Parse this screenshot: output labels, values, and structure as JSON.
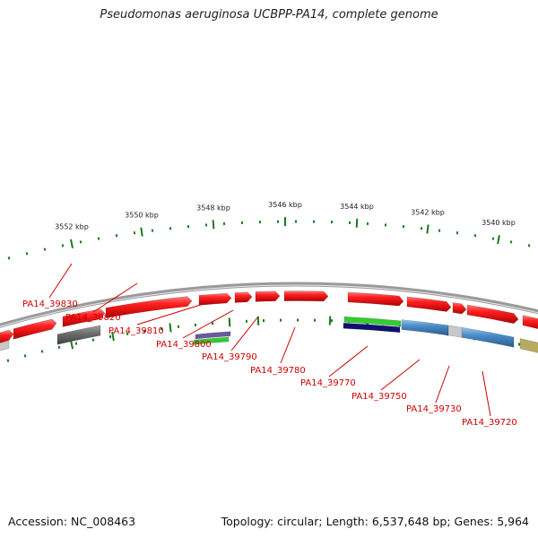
{
  "title": "Pseudomonas aeruginosa UCBPP-PA14, complete genome",
  "footer": {
    "accession": "Accession: NC_008463",
    "summary": "Topology: circular; Length: 6,537,648 bp; Genes: 5,964"
  },
  "scale_labels": [
    "3552 kbp",
    "3550 kbp",
    "3548 kbp",
    "3546 kbp",
    "3544 kbp",
    "3542 kbp",
    "3540 kbp"
  ],
  "gene_labels": [
    "PA14_39830",
    "PA14_39820",
    "PA14_39810",
    "PA14_39800",
    "PA14_39790",
    "PA14_39780",
    "PA14_39770",
    "PA14_39750",
    "PA14_39730",
    "PA14_39720"
  ],
  "colors": {
    "cds_forward": "#ee1111",
    "cds_reverse_gray": "#666666",
    "cds_blue": "#4a8cc8",
    "backbone": "#808080",
    "ticks": "#1a7a1a",
    "label": "#cc0000",
    "green_feature": "#33cc33",
    "navy_feature": "#101070",
    "purple_feature": "#6a5aa0",
    "khaki_feature": "#b8aa60"
  }
}
